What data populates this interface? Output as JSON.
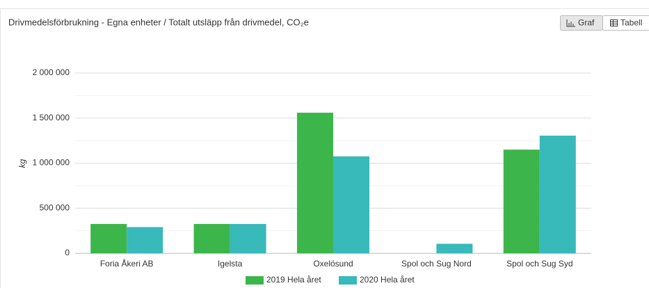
{
  "buttons": [
    "Graf",
    "Tabell"
  ],
  "chart_data": {
    "type": "bar",
    "title": "Drivmedelsförbrukning - Egna enheter / Totalt utsläpp från drivmedel, CO₂e",
    "y_label": "kg",
    "categories": [
      "Foria Åkeri AB",
      "Igelsta",
      "Oxelösund",
      "Spol och Sug Nord",
      "Spol och Sug Syd"
    ],
    "series": [
      {
        "name": "2019 Hela året",
        "color": "#3cb64a",
        "values": [
          325000,
          325000,
          1560000,
          0,
          1150000
        ]
      },
      {
        "name": "2020 Hela året",
        "color": "#38b9ba",
        "values": [
          290000,
          325000,
          1075000,
          105000,
          1305000
        ]
      }
    ],
    "ylim": [
      0,
      2000000
    ],
    "yticks": [
      {
        "value": 0,
        "label": "0"
      },
      {
        "value": 500000,
        "label": "500 000"
      },
      {
        "value": 1000000,
        "label": "1 000 000"
      },
      {
        "value": 1500000,
        "label": "1 500 000"
      },
      {
        "value": 2000000,
        "label": "2 000 000"
      }
    ],
    "minor_yticks": [
      250000,
      750000,
      1250000,
      1750000
    ],
    "grid": true,
    "legend": "bottom"
  }
}
